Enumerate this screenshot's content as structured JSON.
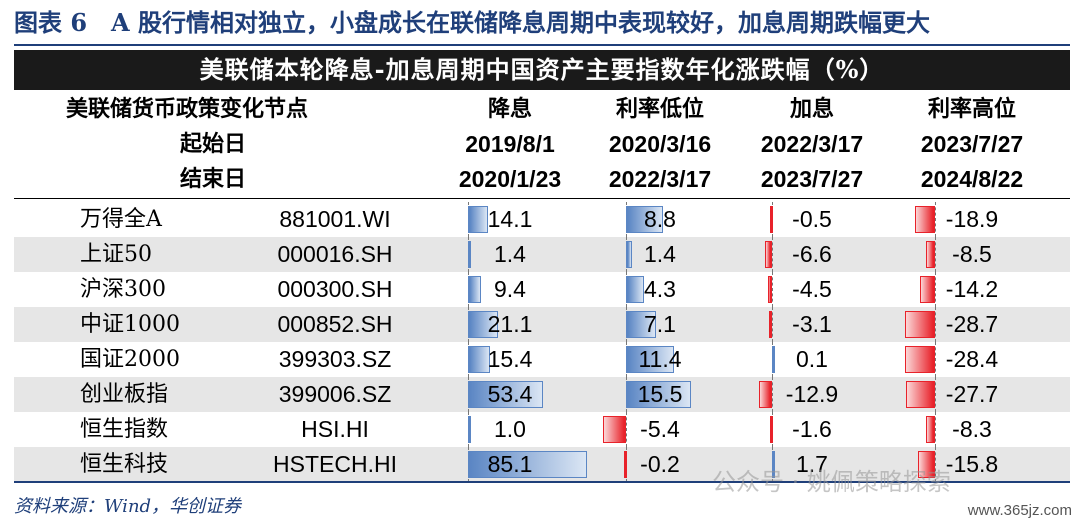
{
  "figure_title": "图表 6　A 股行情相对独立，小盘成长在联储降息周期中表现较好，加息周期跌幅更大",
  "chart_data": {
    "type": "table",
    "title": "美联储本轮降息-加息周期中国资产主要指数年化涨跌幅（%）",
    "header_labels": {
      "policy": "美联储货币政策变化节点",
      "start": "起始日",
      "end": "结束日"
    },
    "periods": [
      {
        "phase": "降息",
        "start": "2019/8/1",
        "end": "2020/1/23"
      },
      {
        "phase": "利率低位",
        "start": "2020/3/16",
        "end": "2022/3/17"
      },
      {
        "phase": "加息",
        "start": "2022/3/17",
        "end": "2023/7/27"
      },
      {
        "phase": "利率高位",
        "start": "2023/7/27",
        "end": "2024/8/22"
      }
    ],
    "rows": [
      {
        "name": "万得全A",
        "code": "881001.WI",
        "values": [
          "14.1",
          "8.8",
          "-0.5",
          "-18.9"
        ]
      },
      {
        "name": "上证50",
        "code": "000016.SH",
        "values": [
          "1.4",
          "1.4",
          "-6.6",
          "-8.5"
        ]
      },
      {
        "name": "沪深300",
        "code": "000300.SH",
        "values": [
          "9.4",
          "4.3",
          "-4.5",
          "-14.2"
        ]
      },
      {
        "name": "中证1000",
        "code": "000852.SH",
        "values": [
          "21.1",
          "7.1",
          "-3.1",
          "-28.7"
        ]
      },
      {
        "name": "国证2000",
        "code": "399303.SZ",
        "values": [
          "15.4",
          "11.4",
          "0.1",
          "-28.4"
        ]
      },
      {
        "name": "创业板指",
        "code": "399006.SZ",
        "values": [
          "53.4",
          "15.5",
          "-12.9",
          "-27.7"
        ]
      },
      {
        "name": "恒生指数",
        "code": "HSI.HI",
        "values": [
          "1.0",
          "-5.4",
          "-1.6",
          "-8.3"
        ]
      },
      {
        "name": "恒生科技",
        "code": "HSTECH.HI",
        "values": [
          "85.1",
          "-0.2",
          "1.7",
          "-15.8"
        ]
      }
    ],
    "colors": {
      "positive": "#5b86c4",
      "negative": "#e8222a"
    }
  },
  "source": "资料来源：Wind，华创证券",
  "watermark": "公众号 · 姚佩策略探索",
  "site": "www.365jz.com"
}
